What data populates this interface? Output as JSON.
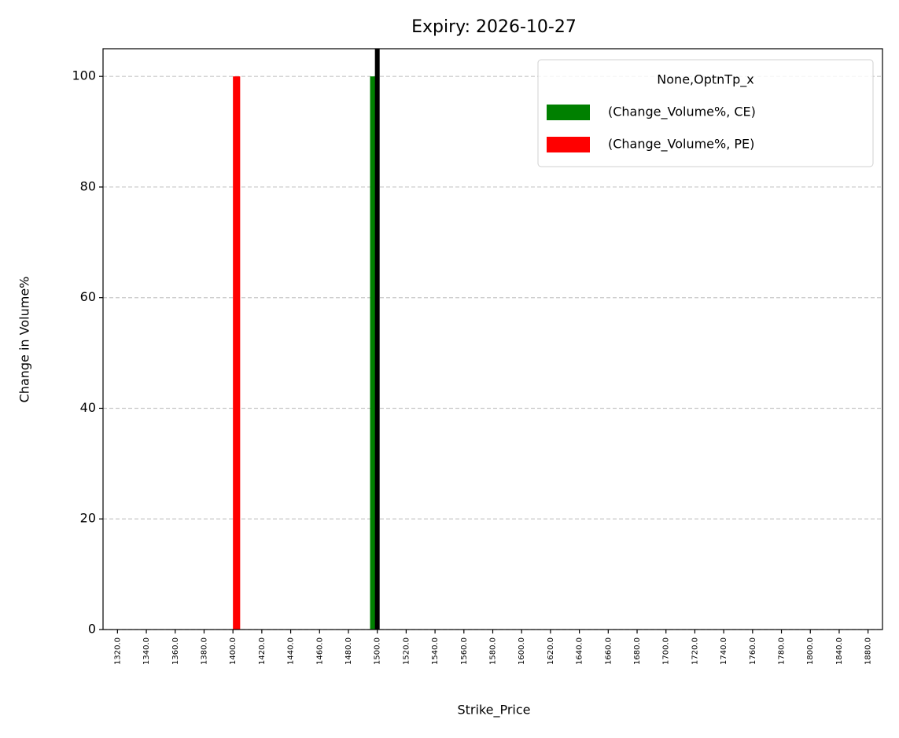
{
  "chart_data": {
    "type": "bar",
    "title": "Expiry: 2026-10-27",
    "x_label": "Strike_Price",
    "y_label": "Change in Volume%",
    "categories": [
      "1320.0",
      "1340.0",
      "1360.0",
      "1380.0",
      "1400.0",
      "1420.0",
      "1440.0",
      "1460.0",
      "1480.0",
      "1500.0",
      "1520.0",
      "1540.0",
      "1560.0",
      "1580.0",
      "1600.0",
      "1620.0",
      "1640.0",
      "1660.0",
      "1680.0",
      "1700.0",
      "1720.0",
      "1740.0",
      "1760.0",
      "1780.0",
      "1800.0",
      "1840.0",
      "1880.0"
    ],
    "series": [
      {
        "name": "(Change_Volume%, CE)",
        "color": "#008000",
        "values": [
          0,
          0,
          0,
          0,
          0,
          0,
          0,
          0,
          0,
          100,
          0,
          0,
          0,
          0,
          0,
          0,
          0,
          0,
          0,
          0,
          0,
          0,
          0,
          0,
          0,
          0,
          0
        ]
      },
      {
        "name": "(Change_Volume%, PE)",
        "color": "#ff0000",
        "values": [
          0,
          0,
          0,
          0,
          100,
          0,
          0,
          0,
          0,
          0,
          0,
          0,
          0,
          0,
          0,
          0,
          0,
          0,
          0,
          0,
          0,
          0,
          0,
          0,
          0,
          0,
          0
        ]
      }
    ],
    "legend_title": "None,OptnTp_x",
    "legend": "upper right",
    "vline": 9,
    "vline_color": "#000000",
    "ylim": [
      0,
      105
    ],
    "yticks": [
      0,
      20,
      40,
      60,
      80,
      100
    ],
    "grid": true
  }
}
